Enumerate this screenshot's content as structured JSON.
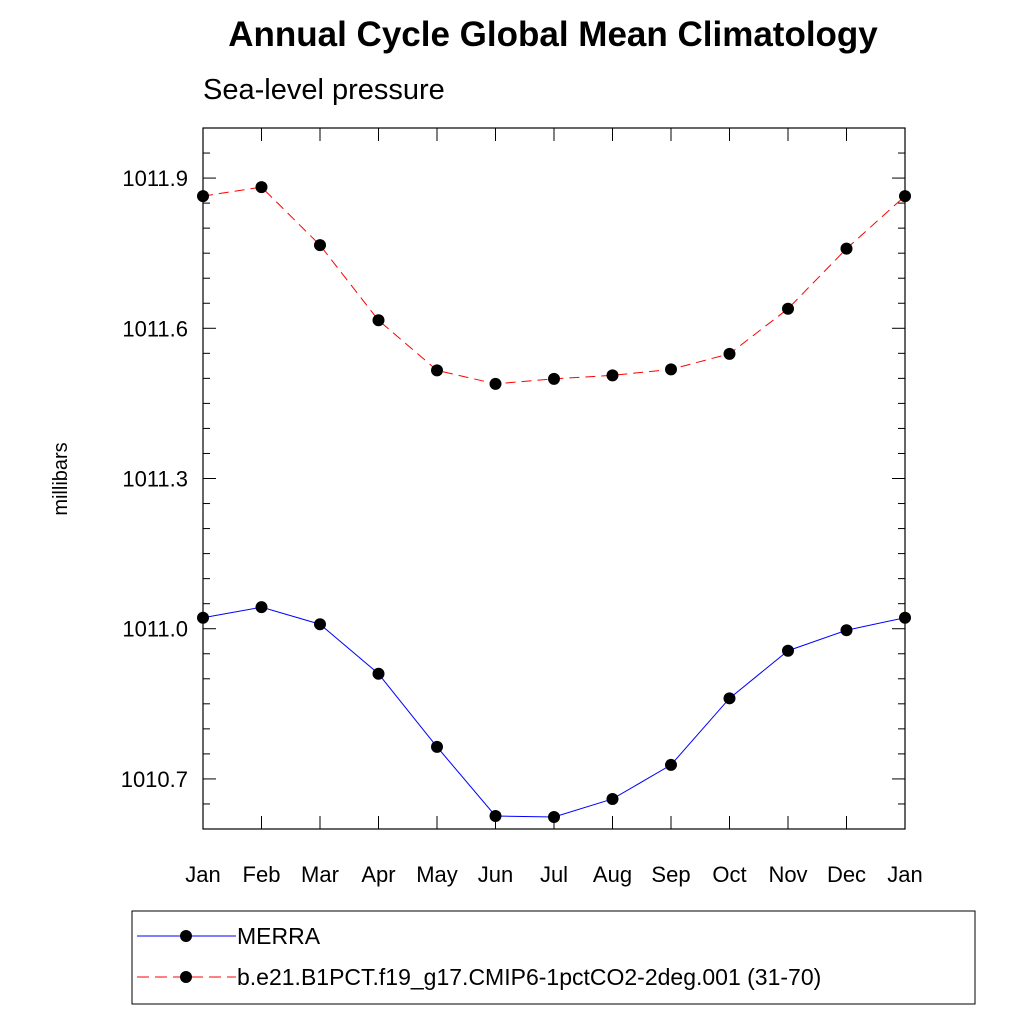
{
  "chart_data": {
    "type": "line",
    "title": "Annual Cycle Global Mean Climatology",
    "subtitle": "Sea-level pressure",
    "xlabel": "",
    "ylabel": "millibars",
    "categories": [
      "Jan",
      "Feb",
      "Mar",
      "Apr",
      "May",
      "Jun",
      "Jul",
      "Aug",
      "Sep",
      "Oct",
      "Nov",
      "Dec",
      "Jan"
    ],
    "yticks": [
      "1010.7",
      "1011.0",
      "1011.3",
      "1011.6",
      "1011.9"
    ],
    "ylim": [
      1010.6,
      1012.0
    ],
    "grid": false,
    "legend_position": "bottom",
    "series": [
      {
        "name": "MERRA",
        "color": "#0000ff",
        "line_style": "solid",
        "marker": "filled-circle",
        "values": [
          1011.022,
          1011.043,
          1011.009,
          1010.91,
          1010.764,
          1010.626,
          1010.624,
          1010.66,
          1010.728,
          1010.861,
          1010.956,
          1010.997,
          1011.022
        ]
      },
      {
        "name": "b.e21.B1PCT.f19_g17.CMIP6-1pctCO2-2deg.001 (31-70)",
        "color": "#ff0000",
        "line_style": "dashed",
        "marker": "filled-circle",
        "values": [
          1011.864,
          1011.882,
          1011.766,
          1011.616,
          1011.516,
          1011.489,
          1011.499,
          1011.506,
          1011.518,
          1011.549,
          1011.639,
          1011.759,
          1011.864
        ]
      }
    ]
  }
}
